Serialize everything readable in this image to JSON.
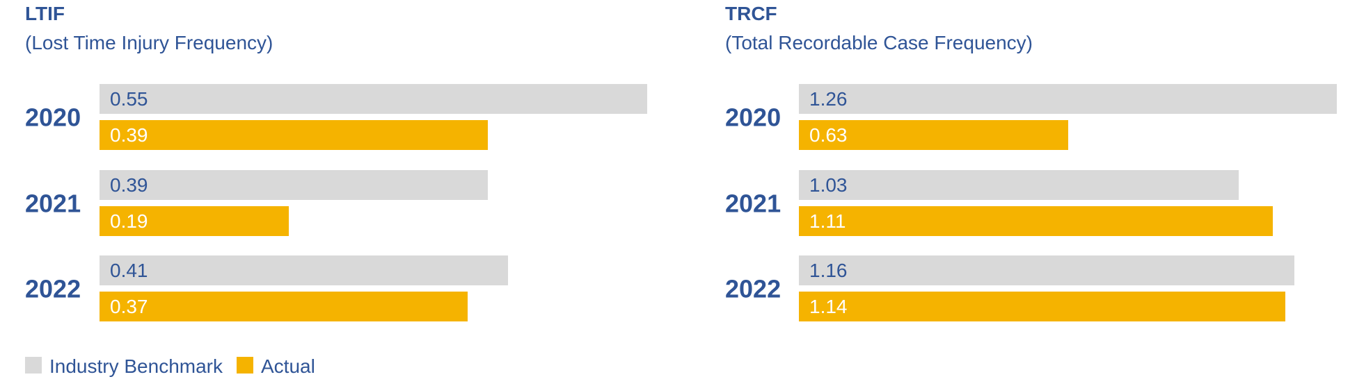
{
  "colors": {
    "text": "#2f5496",
    "benchmark": "#d9d9d9",
    "actual": "#f5b300",
    "actual_text": "#ffffff"
  },
  "legend": {
    "items": [
      {
        "label": "Industry Benchmark",
        "color": "#d9d9d9"
      },
      {
        "label": "Actual",
        "color": "#f5b300"
      }
    ]
  },
  "chart_data": [
    {
      "type": "bar",
      "orientation": "horizontal",
      "title": "LTIF",
      "subtitle": "(Lost Time Injury Frequency)",
      "categories": [
        "2020",
        "2021",
        "2022"
      ],
      "series": [
        {
          "name": "Industry Benchmark",
          "values": [
            0.55,
            0.39,
            0.41
          ]
        },
        {
          "name": "Actual",
          "values": [
            0.39,
            0.19,
            0.37
          ]
        }
      ],
      "value_labels": [
        [
          "0.55",
          "0.39",
          "0.41"
        ],
        [
          "0.39",
          "0.19",
          "0.37"
        ]
      ],
      "xlim": [
        0,
        0.55
      ],
      "grid": false,
      "legend_position": "bottom-left"
    },
    {
      "type": "bar",
      "orientation": "horizontal",
      "title": "TRCF",
      "subtitle": "(Total Recordable Case Frequency)",
      "categories": [
        "2020",
        "2021",
        "2022"
      ],
      "series": [
        {
          "name": "Industry Benchmark",
          "values": [
            1.26,
            1.03,
            1.16
          ]
        },
        {
          "name": "Actual",
          "values": [
            0.63,
            1.11,
            1.14
          ]
        }
      ],
      "value_labels": [
        [
          "1.26",
          "1.03",
          "1.16"
        ],
        [
          "0.63",
          "1.11",
          "1.14"
        ]
      ],
      "xlim": [
        0,
        1.26
      ],
      "grid": false,
      "legend_position": "bottom-left"
    }
  ]
}
